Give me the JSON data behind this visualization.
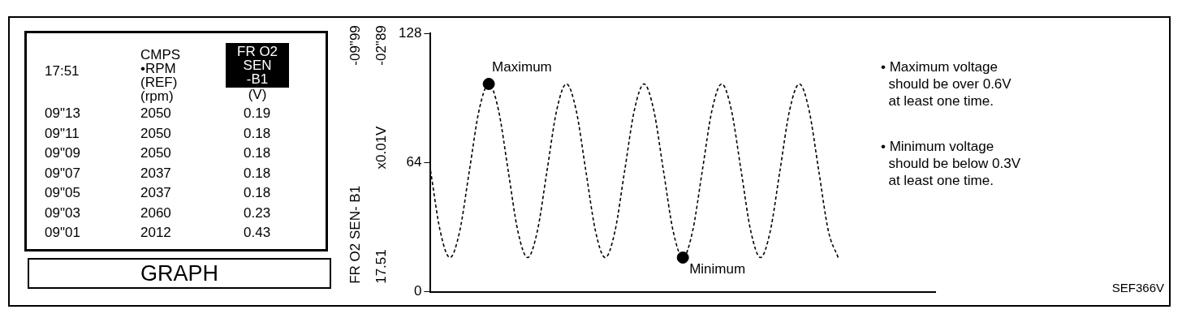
{
  "chart_data": [
    {
      "type": "other",
      "title": "GRAPH",
      "annotations": [
        "17:51",
        "CMPS\n•RPM\n(REF)\n(rpm)",
        "FR O2\nSEN\n-B1\n(V)",
        "09\"13",
        "2050",
        "0.19",
        "09\"11",
        "2050",
        "0.18",
        "09\"09",
        "2050",
        "0.18",
        "09\"07",
        "2037",
        "0.18",
        "09\"05",
        "2037",
        "0.18",
        "09\"03",
        "2060",
        "0.23",
        "09\"01",
        "2012",
        "0.43"
      ]
    },
    {
      "type": "line",
      "ylabel": "FR O2 SEN- B1",
      "ylim": [
        0,
        128
      ],
      "yticks": [
        0,
        64,
        128
      ],
      "categories": [
        null,
        null,
        null,
        null,
        null,
        null,
        null,
        null,
        null,
        null,
        null,
        null,
        null,
        null,
        null,
        null,
        null,
        null,
        null,
        null,
        null,
        null,
        null,
        null,
        null,
        null,
        null,
        null,
        null,
        null,
        null,
        null,
        null,
        null,
        null,
        null,
        null,
        null,
        null,
        null,
        null,
        null,
        null,
        null,
        null,
        null,
        null,
        null,
        null,
        null,
        null,
        null,
        null
      ],
      "series": [
        {
          "type": "line",
          "color": "#000000",
          "line_style": "dashed",
          "marker": "none",
          "values": [
            60,
            30,
            17,
            30,
            60,
            90,
            103,
            90,
            60,
            30,
            17,
            30,
            60,
            90,
            103,
            90,
            60,
            30,
            17,
            30,
            60,
            90,
            103,
            90,
            60,
            30,
            17,
            30,
            60,
            90,
            103,
            90,
            60,
            30,
            17,
            30,
            60,
            90,
            103,
            90,
            60,
            30,
            17,
            null,
            null,
            null,
            null,
            null,
            null,
            null,
            null,
            null,
            null
          ]
        },
        {
          "type": "scatter",
          "color": "#000000",
          "marker": "circle",
          "values": [
            null,
            null,
            null,
            null,
            null,
            null,
            103,
            null,
            null,
            null,
            null,
            null,
            null,
            null,
            null,
            null,
            null,
            null,
            null,
            null,
            null,
            null,
            null,
            null,
            null,
            null,
            17,
            null,
            null,
            null,
            null,
            null,
            null,
            null,
            null,
            null,
            null,
            null,
            null,
            null,
            null,
            null,
            null,
            null,
            null,
            null,
            null,
            null,
            null,
            null,
            null,
            null,
            null
          ],
          "value_labels": [
            null,
            null,
            null,
            null,
            null,
            null,
            "Maximum",
            null,
            null,
            null,
            null,
            null,
            null,
            null,
            null,
            null,
            null,
            null,
            null,
            null,
            null,
            null,
            null,
            null,
            null,
            null,
            "Minimum",
            null,
            null,
            null,
            null,
            null,
            null,
            null,
            null,
            null,
            null,
            null,
            null,
            null,
            null,
            null,
            null,
            null,
            null,
            null,
            null,
            null,
            null,
            null,
            null,
            null,
            null
          ]
        }
      ],
      "annotations": [
        "-09\"99",
        "-02\"89",
        "17.51",
        "x0.01V",
        "• Maximum voltage\n  should be over 0.6V\n  at least one time.",
        "• Minimum voltage\n  should be below 0.3V\n  at least one time.",
        "SEF366V"
      ]
    }
  ]
}
